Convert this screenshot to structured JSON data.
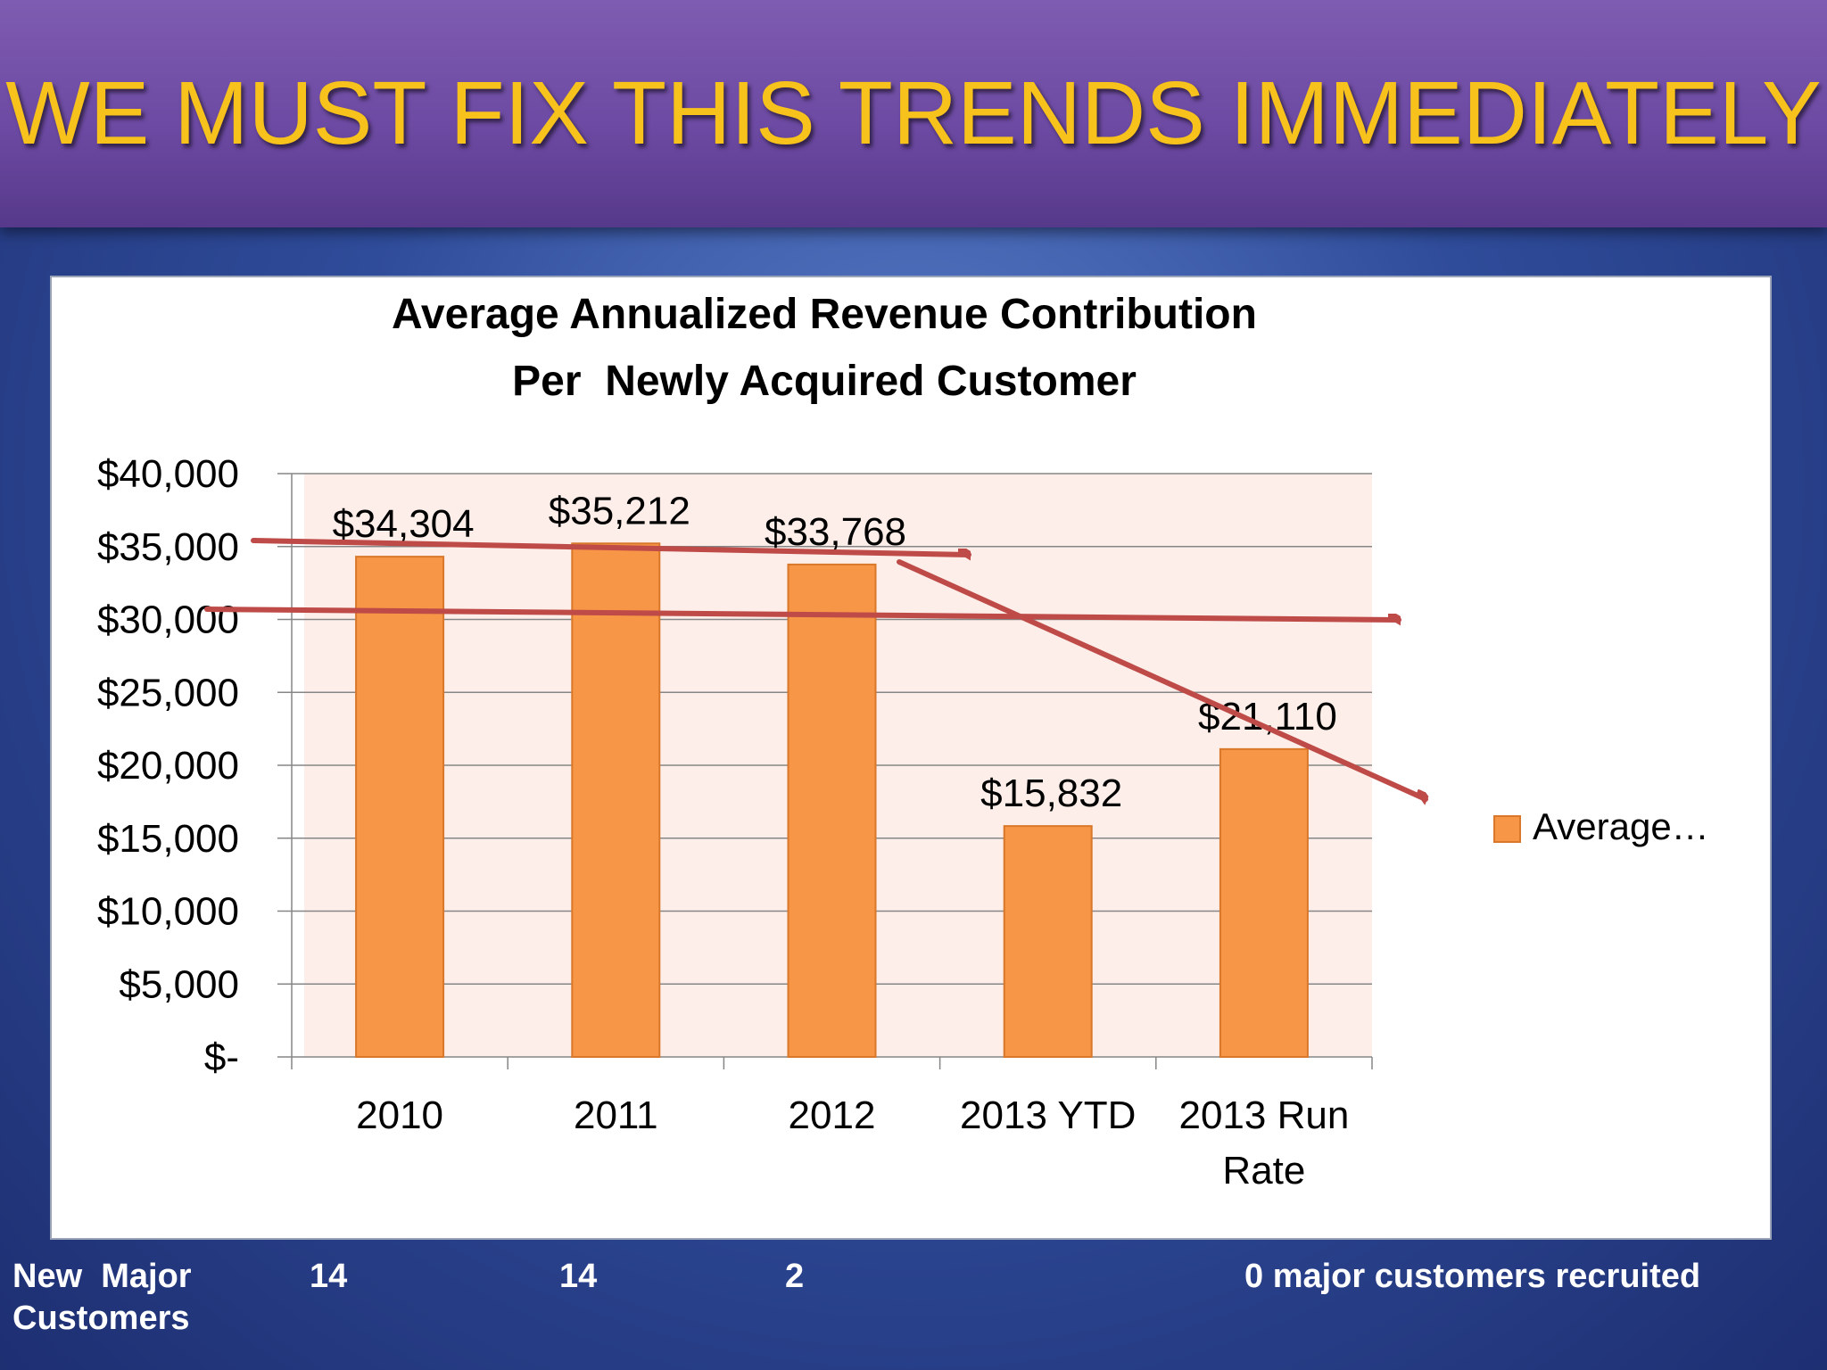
{
  "slide_title": "WE MUST FIX THIS TRENDS IMMEDIATELY",
  "chart_data": {
    "type": "bar",
    "title": "Average Annualized Revenue Contribution",
    "subtitle": "Per  Newly Acquired Customer",
    "categories": [
      "2010",
      "2011",
      "2012",
      "2013 YTD",
      "2013 Run Rate"
    ],
    "series": [
      {
        "name": "Average…",
        "values": [
          34304,
          35212,
          33768,
          15832,
          21110
        ]
      }
    ],
    "data_labels": [
      "$34,304",
      "$35,212",
      "$33,768",
      "$15,832",
      "$21,110"
    ],
    "ylim": [
      0,
      40000
    ],
    "y_tick_values": [
      0,
      5000,
      10000,
      15000,
      20000,
      25000,
      30000,
      35000,
      40000
    ],
    "y_tick_labels": [
      "$-",
      "$5,000",
      "$10,000",
      "$15,000",
      "$20,000",
      "$25,000",
      "$30,000",
      "$35,000",
      "$40,000"
    ],
    "grid": true,
    "legend_position": "right",
    "colors": {
      "bar": "#f79646",
      "bar_border": "#d9772a",
      "plot_background": "#fdeee9",
      "gridline": "#868686",
      "annotation_arrow": "#be4b48"
    },
    "annotations": "three red trend arrows drawn over the chart"
  },
  "footer": {
    "row_label_line1": "New  Major",
    "row_label_line2": "Customers",
    "values": [
      "14",
      "14",
      "2"
    ],
    "note": "0 major customers recruited"
  }
}
